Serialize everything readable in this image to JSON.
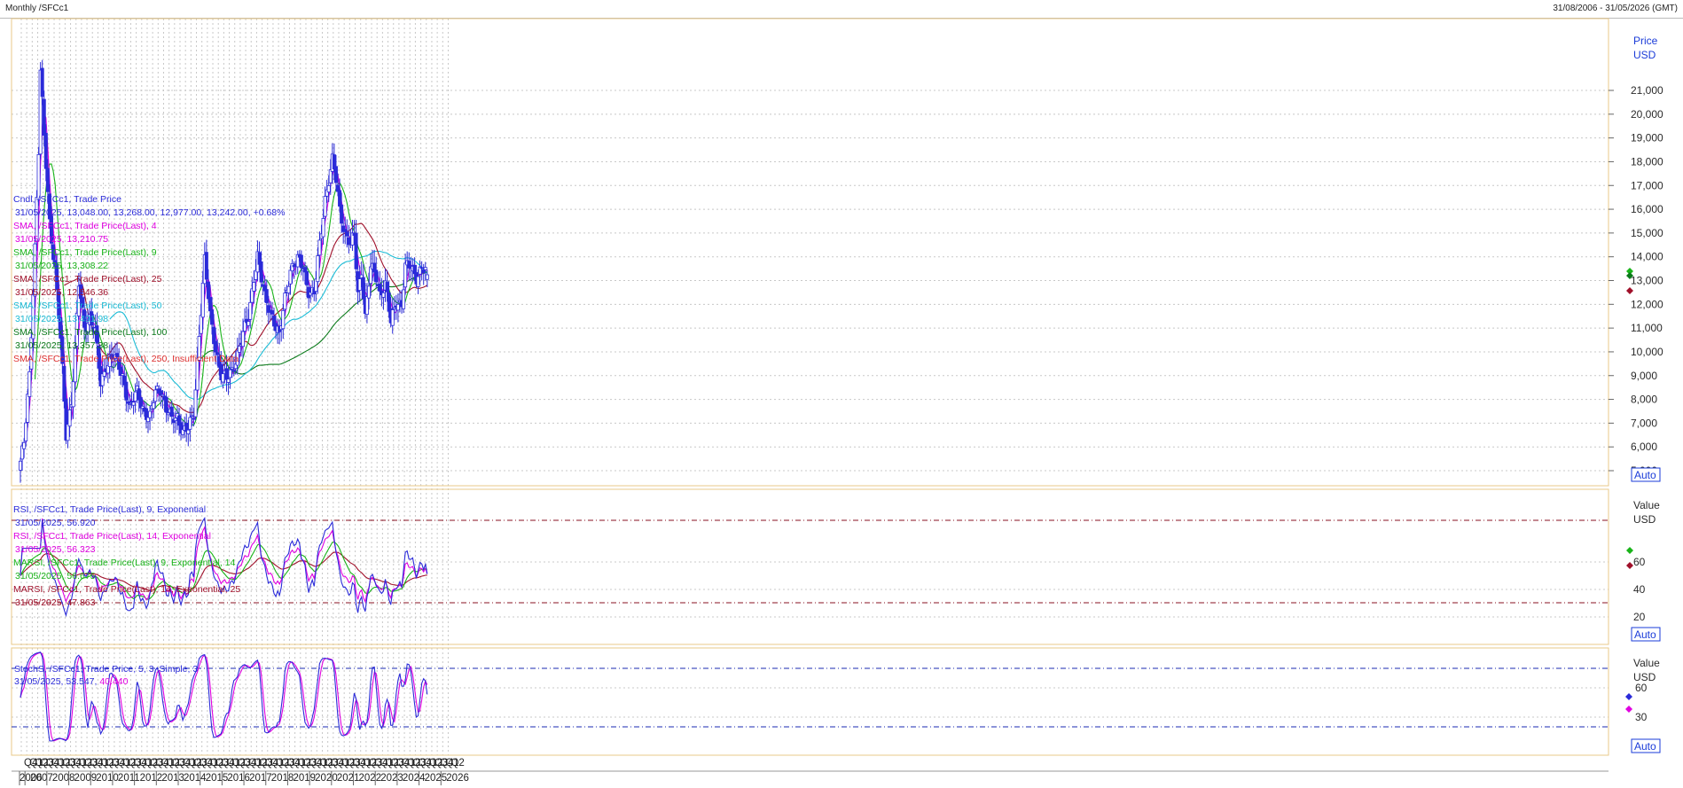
{
  "window": {
    "title": "Monthly /SFCc1",
    "date_range": "31/08/2006 - 31/05/2026 (GMT)"
  },
  "price_panel": {
    "axis_title_1": "Price",
    "axis_title_2": "USD",
    "auto_label": "Auto",
    "legend": [
      {
        "line1": "Cndl, /SFCc1, Trade Price",
        "line2": "31/05/2025, 13,048.00, 13,268.00, 12,977.00, 13,242.00, +0.68%",
        "color": "#2b2bd9",
        "value_color": "#2b2bd9"
      },
      {
        "line1": "SMA, /SFCc1, Trade Price(Last), 4",
        "line2": "31/05/2025, 13,210.75",
        "color": "#e000e0"
      },
      {
        "line1": "SMA, /SFCc1, Trade Price(Last), 9",
        "line2": "31/05/2025, 13,308.22",
        "color": "#19b419"
      },
      {
        "line1": "SMA, /SFCc1, Trade Price(Last), 25",
        "line2": "31/05/2025, 12,546.36",
        "color": "#a0102a"
      },
      {
        "line1": "SMA, /SFCc1, Trade Price(Last), 50",
        "line2": "31/05/2025, 13,491.98",
        "color": "#1bbcd6"
      },
      {
        "line1": "SMA, /SFCc1, Trade Price(Last), 100",
        "line2": "31/05/2025, 13,357.38",
        "color": "#0a7a1a"
      },
      {
        "line1": "SMA, /SFCc1, Trade Price(Last), 250, Insufficient Data",
        "line2": "",
        "color": "#e03030"
      }
    ],
    "y_ticks": [
      "21,000",
      "20,000",
      "19,000",
      "18,000",
      "17,000",
      "16,000",
      "15,000",
      "14,000",
      "13,000",
      "12,000",
      "11,000",
      "10,000",
      "9,000",
      "8,000",
      "7,000",
      "6,000",
      "5,000"
    ]
  },
  "rsi_panel": {
    "axis_title_1": "Value",
    "axis_title_2": "USD",
    "auto_label": "Auto",
    "legend": [
      {
        "line1": "RSI, /SFCc1, Trade Price(Last), 9, Exponential",
        "line2": "31/05/2025, 56.920",
        "color": "#2b2bd9"
      },
      {
        "line1": "RSI, /SFCc1, Trade Price(Last), 14, Exponential",
        "line2": "31/05/2025, 56.323",
        "color": "#e000e0"
      },
      {
        "line1": "MARSI, /SFCc1, Trade Price(Last), 9, Exponential, 14",
        "line2": "31/05/2025, 56.675",
        "color": "#19b419"
      },
      {
        "line1": "MARSI, /SFCc1, Trade Price(Last), 14, Exponential, 25",
        "line2": "31/05/2025, 47.863",
        "color": "#a0102a"
      }
    ],
    "y_ticks": [
      "60",
      "40",
      "20"
    ]
  },
  "stoch_panel": {
    "axis_title_1": "Value",
    "axis_title_2": "USD",
    "auto_label": "Auto",
    "legend_line1": "StochS, /SFCc1, Trade Price,  5, 3, Simple, 3",
    "legend_line2_date": "31/05/2025, 53.547, ",
    "legend_line2_value": "40.440",
    "y_ticks": [
      "60",
      "30"
    ]
  },
  "x_axis": {
    "quarters": [
      "Q4",
      "Q1",
      "Q2",
      "Q3",
      "Q4",
      "Q1",
      "Q2",
      "Q3",
      "Q4",
      "Q1",
      "Q2",
      "Q3",
      "Q4",
      "Q1",
      "Q2",
      "Q3",
      "Q4",
      "Q1",
      "Q2",
      "Q3",
      "Q4",
      "Q1",
      "Q2",
      "Q3",
      "Q4",
      "Q1",
      "Q2",
      "Q3",
      "Q4",
      "Q1",
      "Q2",
      "Q3",
      "Q4",
      "Q1",
      "Q2",
      "Q3",
      "Q4",
      "Q1",
      "Q2",
      "Q3",
      "Q4",
      "Q1",
      "Q2",
      "Q3",
      "Q4",
      "Q1",
      "Q2",
      "Q3",
      "Q4",
      "Q1",
      "Q2",
      "Q3",
      "Q4",
      "Q1",
      "Q2",
      "Q3",
      "Q4",
      "Q1",
      "Q2",
      "Q3",
      "Q4",
      "Q1",
      "Q2",
      "Q3",
      "Q4",
      "Q1",
      "Q2",
      "Q3",
      "Q4",
      "Q1",
      "Q2",
      "Q3",
      "Q4",
      "Q1",
      "Q2",
      "Q3",
      "Q4",
      "Q1",
      "Q2"
    ],
    "years": [
      "2006",
      "2007",
      "2008",
      "2009",
      "2010",
      "2011",
      "2012",
      "2013",
      "2014",
      "2015",
      "2016",
      "2017",
      "2018",
      "2019",
      "2020",
      "2021",
      "2022",
      "2023",
      "2024",
      "2025",
      "2026"
    ]
  },
  "colors": {
    "candle": "#2b2bd9",
    "sma4": "#e000e0",
    "sma9": "#19b419",
    "sma25": "#a0102a",
    "sma50": "#1bbcd6",
    "sma100": "#0a7a1a",
    "grid": "#c8c8c8",
    "panel_border": "#e8c98a",
    "rsi_level": "#8a1020",
    "stoch_level": "#1a2ab0"
  },
  "chart_data": [
    {
      "type": "candlestick",
      "title": "Monthly /SFCc1",
      "y_unit": "USD",
      "ylim": [
        4500,
        22500
      ],
      "x_range": [
        "2006-10",
        "2025-05"
      ],
      "series": [
        {
          "name": "Cndl, /SFCc1, Trade Price",
          "anchors_month_close": [
            [
              "2006-10",
              5400
            ],
            [
              "2006-12",
              6100
            ],
            [
              "2007-03",
              9000
            ],
            [
              "2007-06",
              14500
            ],
            [
              "2007-08",
              18500
            ],
            [
              "2007-09",
              21800
            ],
            [
              "2007-11",
              19000
            ],
            [
              "2008-02",
              15500
            ],
            [
              "2008-05",
              13500
            ],
            [
              "2008-08",
              10500
            ],
            [
              "2008-11",
              6500
            ],
            [
              "2009-02",
              8000
            ],
            [
              "2009-04",
              10000
            ],
            [
              "2009-06",
              12800
            ],
            [
              "2009-09",
              11000
            ],
            [
              "2009-12",
              11500
            ],
            [
              "2010-03",
              10800
            ],
            [
              "2010-06",
              8600
            ],
            [
              "2010-09",
              9500
            ],
            [
              "2011-01",
              9800
            ],
            [
              "2011-06",
              9000
            ],
            [
              "2011-10",
              7600
            ],
            [
              "2012-02",
              8300
            ],
            [
              "2012-06",
              7500
            ],
            [
              "2012-09",
              7200
            ],
            [
              "2012-12",
              8300
            ],
            [
              "2013-03",
              8500
            ],
            [
              "2013-06",
              7600
            ],
            [
              "2013-09",
              7100
            ],
            [
              "2013-12",
              7300
            ],
            [
              "2014-03",
              6700
            ],
            [
              "2014-06",
              6700
            ],
            [
              "2014-09",
              7400
            ],
            [
              "2014-12",
              10800
            ],
            [
              "2015-03",
              13800
            ],
            [
              "2015-06",
              11500
            ],
            [
              "2015-09",
              10200
            ],
            [
              "2015-12",
              9000
            ],
            [
              "2016-03",
              8800
            ],
            [
              "2016-06",
              9300
            ],
            [
              "2016-09",
              9900
            ],
            [
              "2016-12",
              10700
            ],
            [
              "2017-03",
              11500
            ],
            [
              "2017-06",
              13200
            ],
            [
              "2017-08",
              14000
            ],
            [
              "2017-10",
              13000
            ],
            [
              "2017-12",
              12300
            ],
            [
              "2018-03",
              11800
            ],
            [
              "2018-06",
              11000
            ],
            [
              "2018-08",
              10600
            ],
            [
              "2018-11",
              12300
            ],
            [
              "2019-02",
              13500
            ],
            [
              "2019-06",
              13800
            ],
            [
              "2019-09",
              13600
            ],
            [
              "2019-12",
              12600
            ],
            [
              "2020-03",
              12400
            ],
            [
              "2020-06",
              14500
            ],
            [
              "2020-09",
              16500
            ],
            [
              "2021-01",
              18000
            ],
            [
              "2021-03",
              17200
            ],
            [
              "2021-05",
              16000
            ],
            [
              "2021-08",
              15000
            ],
            [
              "2021-11",
              14500
            ],
            [
              "2022-01",
              14800
            ],
            [
              "2022-03",
              12500
            ],
            [
              "2022-05",
              13500
            ],
            [
              "2022-07",
              11500
            ],
            [
              "2022-10",
              13500
            ],
            [
              "2023-01",
              13200
            ],
            [
              "2023-03",
              12500
            ],
            [
              "2023-06",
              12800
            ],
            [
              "2023-09",
              11200
            ],
            [
              "2023-12",
              12200
            ],
            [
              "2024-03",
              12000
            ],
            [
              "2024-05",
              13500
            ],
            [
              "2024-08",
              13600
            ],
            [
              "2024-11",
              13200
            ],
            [
              "2025-02",
              13500
            ],
            [
              "2025-05",
              13242
            ]
          ]
        },
        {
          "name": "SMA 4",
          "last": 13210.75
        },
        {
          "name": "SMA 9",
          "last": 13308.22
        },
        {
          "name": "SMA 25",
          "last": 12546.36
        },
        {
          "name": "SMA 50",
          "last": 13491.98
        },
        {
          "name": "SMA 100",
          "last": 13357.38
        }
      ],
      "last_candle": {
        "date": "31/05/2025",
        "open": 13048,
        "high": 13268,
        "low": 12977,
        "close": 13242,
        "change_pct": 0.68
      }
    },
    {
      "type": "line",
      "title": "RSI",
      "ylim": [
        0,
        100
      ],
      "levels": [
        80,
        20
      ],
      "series": [
        {
          "name": "RSI 9",
          "last": 56.92
        },
        {
          "name": "RSI 14",
          "last": 56.323
        },
        {
          "name": "MARSI 9,14",
          "last": 56.675
        },
        {
          "name": "MARSI 14,25",
          "last": 47.863
        }
      ]
    },
    {
      "type": "line",
      "title": "StochS",
      "ylim": [
        0,
        100
      ],
      "levels": [
        80,
        20
      ],
      "series": [
        {
          "name": "%K",
          "last": 53.547
        },
        {
          "name": "%D",
          "last": 40.44
        }
      ]
    }
  ]
}
